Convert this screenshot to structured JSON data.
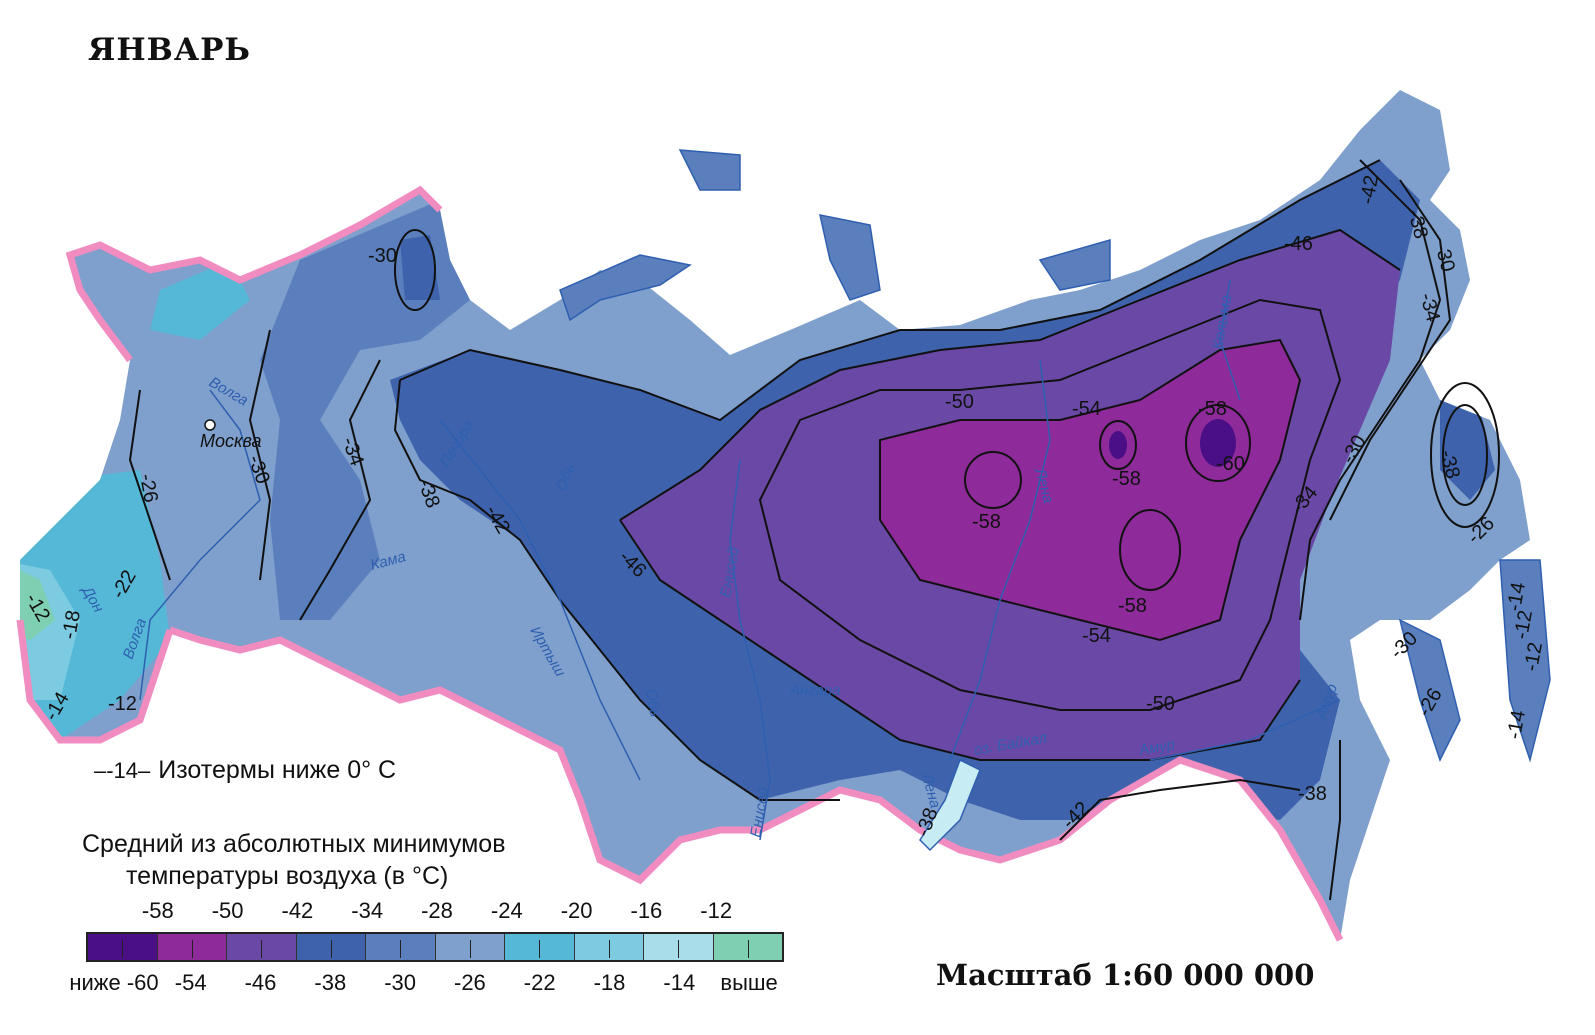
{
  "title": "ЯНВАРЬ",
  "isotherm_legend": {
    "symbol": "–-14–",
    "text": "Изотермы ниже 0° С"
  },
  "legend": {
    "title_line1": "Средний из абсолютных минимумов",
    "title_line2": "температуры воздуха (в °С)",
    "top_labels": [
      "-58",
      "-50",
      "-42",
      "-34",
      "-28",
      "-24",
      "-20",
      "-16",
      "-12"
    ],
    "bottom_labels": [
      "ниже -60",
      "-54",
      "-46",
      "-38",
      "-30",
      "-26",
      "-22",
      "-18",
      "-14",
      "выше"
    ],
    "swatch_colors": [
      "#4a0f86",
      "#8e2a9a",
      "#6a49a6",
      "#3e63ac",
      "#5a7fbc",
      "#7f9fcc",
      "#55b8d6",
      "#7ccbe0",
      "#a9dde9",
      "#7fcfb2"
    ]
  },
  "scale": "Масштаб 1:60 000 000",
  "colors": {
    "border_pink": "#f08cc0",
    "river": "#2f5fb0",
    "zone_magenta": "#8e2a9a",
    "zone_purple": "#6a49a6",
    "zone_darkblue": "#3e63ac",
    "zone_blue": "#5a7fbc",
    "zone_lightblue": "#7f9fcc",
    "zone_cyan": "#55b8d6",
    "zone_teal": "#7fcfb2"
  },
  "map": {
    "city": "Москва",
    "rivers": [
      "Волга",
      "Дон",
      "Волга",
      "Кама",
      "Печора",
      "Обь",
      "Иртыш",
      "Обь",
      "Енисей",
      "Енисей",
      "Ангара",
      "Лена",
      "Лена",
      "Колыма",
      "Амур",
      "Амур",
      "оз. Байкал"
    ],
    "isotherm_labels": [
      "-30",
      "-26",
      "-30",
      "-34",
      "-38",
      "-42",
      "-46",
      "-50",
      "-54",
      "-58",
      "-58",
      "-60",
      "-58",
      "-58",
      "-54",
      "-50",
      "-46",
      "-42",
      "-38",
      "-30",
      "-34",
      "-38",
      "-30",
      "-26",
      "-34",
      "-30",
      "-26",
      "-38",
      "-42",
      "-38",
      "-22",
      "-18",
      "-12",
      "-14",
      "-12",
      "-14",
      "-12",
      "-12",
      "-14"
    ]
  }
}
